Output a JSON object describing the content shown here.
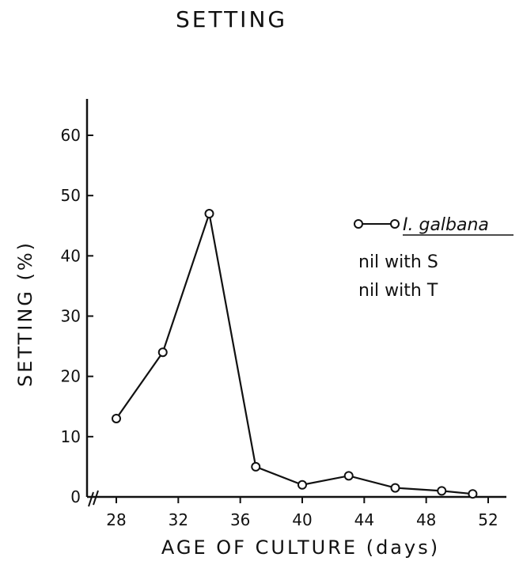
{
  "page_title": "SETTING",
  "chart_data": {
    "type": "line",
    "title": "SETTING",
    "xlabel": "AGE OF CULTURE (days)",
    "ylabel": "SETTING (%)",
    "xlim": [
      26.5,
      53.5
    ],
    "ylim": [
      0,
      60
    ],
    "xticks": [
      28,
      32,
      36,
      40,
      44,
      48,
      52
    ],
    "yticks": [
      0,
      10,
      20,
      30,
      40,
      50,
      60
    ],
    "grid": false,
    "legend_position": "right",
    "series": [
      {
        "name": "I. galbana",
        "marker": "open-circle",
        "x": [
          28,
          31,
          34,
          37,
          40,
          43,
          46,
          49,
          51
        ],
        "y": [
          13,
          24,
          47,
          5,
          2,
          3.5,
          1.5,
          1,
          0.5
        ]
      }
    ],
    "legend_extra": [
      "nil with S",
      "nil with T"
    ]
  }
}
